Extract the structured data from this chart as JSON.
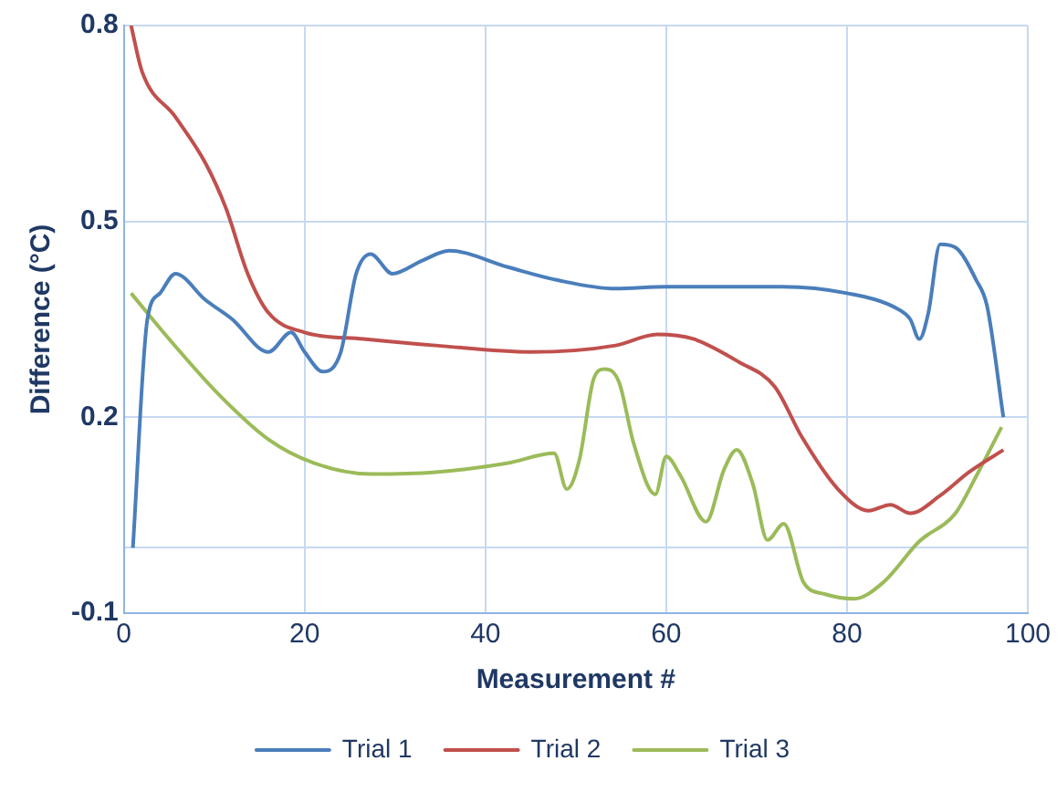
{
  "chart_data": {
    "type": "line",
    "xlabel": "Measurement #",
    "ylabel": "Difference (°C)",
    "xlim": [
      0,
      100
    ],
    "xticks": [
      0,
      20,
      40,
      60,
      80,
      100
    ],
    "ylim": [
      -0.1,
      0.8
    ],
    "yticks": [
      -0.1,
      {
        "value": 0,
        "label": null
      },
      0.2,
      0.5,
      0.8
    ],
    "grid": true,
    "legend": "bottom",
    "marker": "none",
    "line_style": "solid",
    "series": [
      {
        "name": "Trial 1",
        "color": "#4a7ebb",
        "x": [
          1,
          2.6,
          4,
          5.7,
          9,
          12,
          16,
          18.5,
          20,
          22,
          24,
          25.7,
          27.3,
          29.7,
          33,
          36,
          42.5,
          48,
          54.4,
          60,
          66.4,
          72.8,
          80,
          85.6,
          87,
          88,
          89,
          90.3,
          92,
          94.3,
          95.5,
          97.3
        ],
        "values": [
          0,
          0.35,
          0.39,
          0.42,
          0.38,
          0.35,
          0.3,
          0.33,
          0.3,
          0.27,
          0.3,
          0.42,
          0.45,
          0.42,
          0.44,
          0.455,
          0.43,
          0.41,
          0.397,
          0.4,
          0.4,
          0.4,
          0.39,
          0.366,
          0.35,
          0.32,
          0.36,
          0.465,
          0.46,
          0.41,
          0.37,
          0.2
        ]
      },
      {
        "name": "Trial 2",
        "color": "#c0504d",
        "x": [
          0.8,
          2,
          5.7,
          9,
          11.3,
          13.7,
          16,
          20,
          26.5,
          34.5,
          45,
          54.4,
          59,
          63,
          68,
          72,
          75,
          79,
          82.4,
          84.8,
          87,
          90.3,
          93.5,
          97.3
        ],
        "values": [
          0.8,
          0.73,
          0.66,
          0.59,
          0.52,
          0.42,
          0.36,
          0.33,
          0.32,
          0.31,
          0.3,
          0.31,
          0.327,
          0.32,
          0.285,
          0.247,
          0.17,
          0.09,
          0.057,
          0.066,
          0.053,
          0.08,
          0.116,
          0.15
        ]
      },
      {
        "name": "Trial 3",
        "color": "#9bbb59",
        "x": [
          0.8,
          5,
          10.5,
          16,
          21,
          27.3,
          34.5,
          42.5,
          47.6,
          49,
          50.4,
          52,
          53.2,
          54.8,
          56.4,
          58.8,
          60,
          61.6,
          64.4,
          66.4,
          67.8,
          69.6,
          71.2,
          73,
          75.2,
          77.6,
          80.8,
          84,
          88,
          92,
          94.3,
          97.1
        ],
        "values": [
          0.39,
          0.32,
          0.235,
          0.166,
          0.13,
          0.113,
          0.116,
          0.13,
          0.145,
          0.09,
          0.135,
          0.26,
          0.274,
          0.253,
          0.16,
          0.082,
          0.14,
          0.11,
          0.04,
          0.12,
          0.15,
          0.097,
          0.012,
          0.037,
          -0.053,
          -0.071,
          -0.078,
          -0.053,
          0.01,
          0.053,
          0.11,
          0.185
        ]
      }
    ]
  }
}
